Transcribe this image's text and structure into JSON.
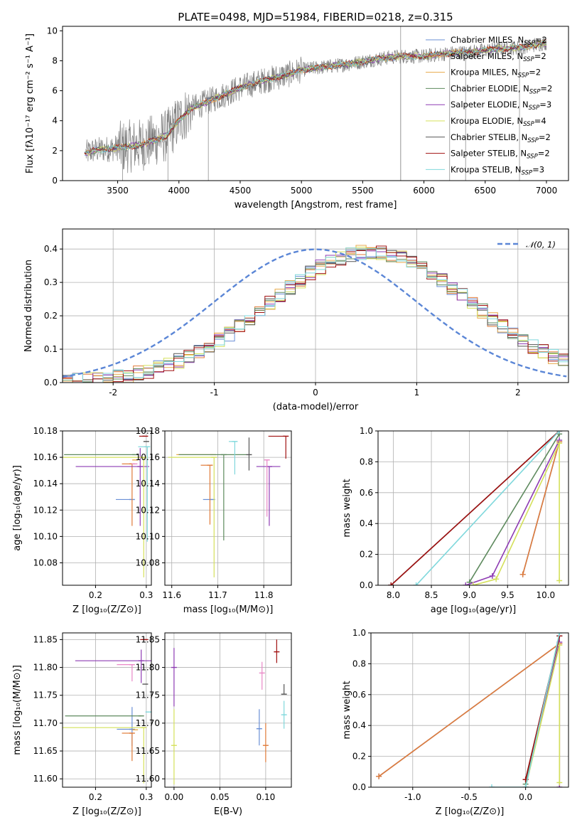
{
  "figure": {
    "title": "PLATE=0498, MJD=51984, FIBERID=0218, z=0.315"
  },
  "colors": {
    "data": "#808080",
    "models": [
      "#6a8fd6",
      "#e07b39",
      "#e8a94a",
      "#5e8a5e",
      "#8e3bb3",
      "#d4e05a",
      "#555555",
      "#a01010",
      "#7fd8dc"
    ],
    "extra": [
      "#e987c7",
      "#c9b24a"
    ]
  },
  "chart_data": [
    {
      "id": "spectrum",
      "type": "line",
      "title": "PLATE=0498, MJD=51984, FIBERID=0218, z=0.315",
      "xlabel": "wavelength [Angstrom, rest frame]",
      "ylabel": "Flux [fλ10⁻¹⁷ erg cm⁻² s⁻¹ A⁻¹]",
      "xlim": [
        3050,
        7180
      ],
      "ylim": [
        0,
        10.3
      ],
      "xticks": [
        3500,
        4000,
        4500,
        5000,
        5500,
        6000,
        6500,
        7000
      ],
      "yticks": [
        0,
        2,
        4,
        6,
        8,
        10
      ],
      "grid": false,
      "legend": "top-right",
      "continuum": {
        "x": [
          3230,
          3300,
          3500,
          3700,
          3900,
          4000,
          4100,
          4300,
          4500,
          4700,
          4900,
          5000,
          5200,
          5400,
          5600,
          5800,
          6000,
          6200,
          6400,
          6600,
          6800,
          7000
        ],
        "y": [
          1.8,
          2.0,
          2.2,
          2.4,
          3.0,
          4.0,
          4.8,
          5.5,
          6.2,
          6.7,
          7.1,
          7.4,
          7.6,
          7.8,
          8.1,
          8.3,
          8.3,
          8.5,
          8.6,
          8.8,
          8.9,
          9.2
        ]
      },
      "series": [
        {
          "name": "Chabrier MILES, N",
          "sub": "SSP",
          "suffix": "=2"
        },
        {
          "name": "Salpeter MILES, N",
          "sub": "SSP",
          "suffix": "=2"
        },
        {
          "name": "Kroupa MILES, N",
          "sub": "SSP",
          "suffix": "=2"
        },
        {
          "name": "Chabrier ELODIE, N",
          "sub": "SSP",
          "suffix": "=2"
        },
        {
          "name": "Salpeter ELODIE, N",
          "sub": "SSP",
          "suffix": "=3"
        },
        {
          "name": "Kroupa ELODIE, N",
          "sub": "SSP",
          "suffix": "=4"
        },
        {
          "name": "Chabrier STELIB, N",
          "sub": "SSP",
          "suffix": "=2"
        },
        {
          "name": "Salpeter STELIB, N",
          "sub": "SSP",
          "suffix": "=2"
        },
        {
          "name": "Kroupa STELIB, N",
          "sub": "SSP",
          "suffix": "=3"
        }
      ]
    },
    {
      "id": "residuals",
      "type": "line",
      "xlabel": "(data-model)/error",
      "ylabel": "Normed distribution",
      "xlim": [
        -2.5,
        2.5
      ],
      "ylim": [
        0,
        0.46
      ],
      "xticks": [
        -2,
        -1,
        0,
        1,
        2
      ],
      "yticks": [
        0.0,
        0.1,
        0.2,
        0.3,
        0.4
      ],
      "grid": true,
      "legend": "top-right",
      "gaussian_label": "𝒩(0, 1)"
    },
    {
      "id": "age-vs-Z",
      "type": "scatter",
      "xlabel": "Z [log₁₀(Z/Z⊙)]",
      "ylabel": "age  [log₁₀(age/yr)]",
      "xlim": [
        0.135,
        0.31
      ],
      "ylim": [
        10.063,
        10.18
      ],
      "xticks": [
        0.2,
        0.3
      ],
      "yticks": [
        10.08,
        10.1,
        10.12,
        10.14,
        10.16,
        10.18
      ],
      "grid": true,
      "points": [
        {
          "x": 0.272,
          "y": 10.128,
          "xerr": [
            0.032,
            0.0
          ],
          "yerr": [
            0.0,
            0.0
          ],
          "c": 0
        },
        {
          "x": 0.272,
          "y": 10.155,
          "xerr": [
            0.02,
            0.0
          ],
          "yerr": [
            0.047,
            0.0
          ],
          "c": 1
        },
        {
          "x": 0.278,
          "y": 10.158,
          "xerr": [
            0.0,
            0.0
          ],
          "yerr": [
            0.0,
            0.0
          ],
          "c": 2
        },
        {
          "x": 0.278,
          "y": 10.162,
          "xerr": [
            0.14,
            0.0
          ],
          "yerr": [
            0.0,
            0.0
          ],
          "c": 3
        },
        {
          "x": 0.288,
          "y": 10.153,
          "xerr": [
            0.127,
            0.018
          ],
          "yerr": [
            0.045,
            0.014
          ],
          "c": 4
        },
        {
          "x": 0.295,
          "y": 10.16,
          "xerr": [
            0.16,
            0.0
          ],
          "yerr": [
            0.091,
            0.0
          ],
          "c": 5
        },
        {
          "x": 0.3,
          "y": 10.172,
          "xerr": [
            0.0,
            0.0
          ],
          "yerr": [
            0.0,
            0.0
          ],
          "c": 6
        },
        {
          "x": 0.298,
          "y": 10.176,
          "xerr": [
            0.012,
            0.0
          ],
          "yerr": [
            0.0,
            0.0
          ],
          "c": 7
        },
        {
          "x": 0.302,
          "y": 10.168,
          "xerr": [
            0.018,
            0.0
          ],
          "yerr": [
            0.072,
            0.0
          ],
          "c": 8
        },
        {
          "x": 0.277,
          "y": 10.155,
          "xerr": [
            0.0,
            0.0
          ],
          "yerr": [
            0.0,
            0.0
          ],
          "c": 9
        }
      ]
    },
    {
      "id": "age-vs-mass",
      "type": "scatter",
      "xlabel": "mass [log₁₀(M/M⊙)]",
      "ylabel": "",
      "xlim": [
        11.585,
        11.86
      ],
      "ylim": [
        10.063,
        10.18
      ],
      "xticks": [
        11.6,
        11.7,
        11.8
      ],
      "yticks": [
        10.08,
        10.1,
        10.12,
        10.14,
        10.16,
        10.18
      ],
      "grid": true,
      "points": [
        {
          "x": 11.688,
          "y": 10.128,
          "xerr": [
            0.02,
            0.0
          ],
          "yerr": [
            0.0,
            0.0
          ],
          "c": 0
        },
        {
          "x": 11.683,
          "y": 10.154,
          "xerr": [
            0.02,
            0.0
          ],
          "yerr": [
            0.045,
            0.0
          ],
          "c": 1
        },
        {
          "x": 11.69,
          "y": 10.162,
          "xerr": [
            0.08,
            0.0
          ],
          "yerr": [
            0.0,
            0.0
          ],
          "c": 2
        },
        {
          "x": 11.713,
          "y": 10.162,
          "xerr": [
            0.098,
            0.049
          ],
          "yerr": [
            0.065,
            0.0
          ],
          "c": 3
        },
        {
          "x": 11.812,
          "y": 10.153,
          "xerr": [
            0.028,
            0.024
          ],
          "yerr": [
            0.045,
            0.0
          ],
          "c": 4
        },
        {
          "x": 11.692,
          "y": 10.16,
          "xerr": [
            0.1,
            0.0
          ],
          "yerr": [
            0.091,
            0.0
          ],
          "c": 5
        },
        {
          "x": 11.768,
          "y": 10.162,
          "xerr": [
            0.0,
            0.0
          ],
          "yerr": [
            0.012,
            0.013
          ],
          "c": 6
        },
        {
          "x": 11.848,
          "y": 10.176,
          "xerr": [
            0.038,
            0.0
          ],
          "yerr": [
            0.017,
            0.0
          ],
          "c": 7
        },
        {
          "x": 11.737,
          "y": 10.172,
          "xerr": [
            0.013,
            0.0
          ],
          "yerr": [
            0.025,
            0.0
          ],
          "c": 8
        },
        {
          "x": 11.807,
          "y": 10.158,
          "xerr": [
            0.0,
            0.0
          ],
          "yerr": [
            0.043,
            0.0
          ],
          "c": 9
        }
      ]
    },
    {
      "id": "massweight-vs-age",
      "type": "line",
      "xlabel": "age  [log₁₀(age/yr)]",
      "ylabel": "mass weight",
      "xlim": [
        7.8,
        10.3
      ],
      "ylim": [
        0,
        1.0
      ],
      "xticks": [
        8.0,
        8.5,
        9.0,
        9.5,
        10.0
      ],
      "yticks": [
        0.0,
        0.2,
        0.4,
        0.6,
        0.8,
        1.0
      ],
      "grid": true,
      "series": [
        {
          "c": 0,
          "x": [
            9.7,
            10.18
          ],
          "y": [
            0.07,
            0.93
          ]
        },
        {
          "c": 1,
          "x": [
            9.7,
            10.18
          ],
          "y": [
            0.07,
            0.93
          ]
        },
        {
          "c": 3,
          "x": [
            9.0,
            10.18
          ],
          "y": [
            0.02,
            0.98
          ]
        },
        {
          "c": 4,
          "x": [
            8.95,
            9.3,
            10.18
          ],
          "y": [
            0.0,
            0.06,
            0.94
          ]
        },
        {
          "c": 5,
          "x": [
            9.05,
            9.35,
            10.18,
            10.18
          ],
          "y": [
            0.0,
            0.04,
            0.92,
            0.03
          ]
        },
        {
          "c": 6,
          "x": [
            7.97,
            10.18
          ],
          "y": [
            0.0,
            1.0
          ]
        },
        {
          "c": 7,
          "x": [
            7.97,
            10.18
          ],
          "y": [
            0.0,
            1.0
          ]
        },
        {
          "c": 8,
          "x": [
            8.3,
            10.18
          ],
          "y": [
            0.0,
            1.0
          ]
        }
      ]
    },
    {
      "id": "mass-vs-Z",
      "type": "scatter",
      "xlabel": "Z [log₁₀(Z/Z⊙)]",
      "ylabel": "mass [log₁₀(M/M⊙)]",
      "xlim": [
        0.135,
        0.31
      ],
      "ylim": [
        11.585,
        11.862
      ],
      "xticks": [
        0.2,
        0.3
      ],
      "yticks": [
        11.6,
        11.65,
        11.7,
        11.75,
        11.8,
        11.85
      ],
      "grid": true,
      "points": [
        {
          "x": 0.272,
          "y": 11.689,
          "xerr": [
            0.03,
            0.0
          ],
          "yerr": [
            0.03,
            0.04
          ],
          "c": 0
        },
        {
          "x": 0.272,
          "y": 11.682,
          "xerr": [
            0.02,
            0.0
          ],
          "yerr": [
            0.05,
            0.0
          ],
          "c": 1
        },
        {
          "x": 0.278,
          "y": 11.688,
          "xerr": [
            0.0,
            0.0
          ],
          "yerr": [
            0.0,
            0.0
          ],
          "c": 2
        },
        {
          "x": 0.29,
          "y": 11.713,
          "xerr": [
            0.15,
            0.0
          ],
          "yerr": [
            0.0,
            0.0
          ],
          "c": 3
        },
        {
          "x": 0.29,
          "y": 11.812,
          "xerr": [
            0.13,
            0.02
          ],
          "yerr": [
            0.04,
            0.02
          ],
          "c": 4
        },
        {
          "x": 0.295,
          "y": 11.692,
          "xerr": [
            0.16,
            0.0
          ],
          "yerr": [
            0.1,
            0.0
          ],
          "c": 5
        },
        {
          "x": 0.298,
          "y": 11.77,
          "xerr": [
            0.0,
            0.0
          ],
          "yerr": [
            0.0,
            0.0
          ],
          "c": 6
        },
        {
          "x": 0.298,
          "y": 11.85,
          "xerr": [
            0.01,
            0.0
          ],
          "yerr": [
            0.0,
            0.0
          ],
          "c": 7
        },
        {
          "x": 0.304,
          "y": 11.72,
          "xerr": [
            0.0,
            0.0
          ],
          "yerr": [
            0.0,
            0.0
          ],
          "c": 8
        },
        {
          "x": 0.272,
          "y": 11.805,
          "xerr": [
            0.03,
            0.0
          ],
          "yerr": [
            0.03,
            0.0
          ],
          "c": 9
        }
      ]
    },
    {
      "id": "mass-vs-EBV",
      "type": "scatter",
      "xlabel": "E(B-V)",
      "ylabel": "",
      "xlim": [
        -0.01,
        0.128
      ],
      "ylim": [
        11.585,
        11.862
      ],
      "xticks": [
        0.0,
        0.05,
        0.1
      ],
      "yticks": [
        11.6,
        11.65,
        11.7,
        11.75,
        11.8,
        11.85
      ],
      "grid": true,
      "points": [
        {
          "x": 0.093,
          "y": 11.69,
          "xerr": [
            0.0,
            0.0
          ],
          "yerr": [
            0.03,
            0.035
          ],
          "c": 0
        },
        {
          "x": 0.1,
          "y": 11.66,
          "xerr": [
            0.0,
            0.0
          ],
          "yerr": [
            0.03,
            0.04
          ],
          "c": 1
        },
        {
          "x": 0.0,
          "y": 11.8,
          "xerr": [
            0.0,
            0.0
          ],
          "yerr": [
            0.07,
            0.035
          ],
          "c": 4
        },
        {
          "x": 0.0,
          "y": 11.66,
          "xerr": [
            0.0,
            0.0
          ],
          "yerr": [
            0.07,
            0.065
          ],
          "c": 5
        },
        {
          "x": 0.12,
          "y": 11.752,
          "xerr": [
            0.0,
            0.0
          ],
          "yerr": [
            0.0,
            0.018
          ],
          "c": 6
        },
        {
          "x": 0.112,
          "y": 11.828,
          "xerr": [
            0.0,
            0.0
          ],
          "yerr": [
            0.02,
            0.022
          ],
          "c": 7
        },
        {
          "x": 0.12,
          "y": 11.715,
          "xerr": [
            0.0,
            0.0
          ],
          "yerr": [
            0.025,
            0.025
          ],
          "c": 8
        },
        {
          "x": 0.096,
          "y": 11.79,
          "xerr": [
            0.0,
            0.0
          ],
          "yerr": [
            0.03,
            0.02
          ],
          "c": 9
        }
      ]
    },
    {
      "id": "massweight-vs-Z",
      "type": "line",
      "xlabel": "Z [log₁₀(Z/Z⊙)]",
      "ylabel": "mass weight",
      "xlim": [
        -1.37,
        0.38
      ],
      "ylim": [
        0,
        1.0
      ],
      "xticks": [
        -1.0,
        -0.5,
        0.0
      ],
      "yticks": [
        0.0,
        0.2,
        0.4,
        0.6,
        0.8,
        1.0
      ],
      "grid": true,
      "series": [
        {
          "c": 0,
          "x": [
            -1.3,
            0.3
          ],
          "y": [
            0.07,
            0.93
          ]
        },
        {
          "c": 1,
          "x": [
            -1.3,
            0.3
          ],
          "y": [
            0.07,
            0.93
          ]
        },
        {
          "c": 3,
          "x": [
            0.0,
            0.3
          ],
          "y": [
            0.02,
            0.98
          ]
        },
        {
          "c": 4,
          "x": [
            0.0,
            0.3,
            0.3
          ],
          "y": [
            0.0,
            0.94,
            0.0
          ]
        },
        {
          "c": 5,
          "x": [
            0.0,
            0.3,
            0.3
          ],
          "y": [
            0.0,
            0.92,
            0.03
          ]
        },
        {
          "c": 6,
          "x": [
            0.0,
            0.3
          ],
          "y": [
            0.05,
            0.98
          ]
        },
        {
          "c": 7,
          "x": [
            0.0,
            0.3
          ],
          "y": [
            0.05,
            0.98
          ]
        },
        {
          "c": 8,
          "x": [
            -0.3,
            0.0,
            0.3
          ],
          "y": [
            0.0,
            0.0,
            1.0
          ]
        }
      ]
    }
  ]
}
